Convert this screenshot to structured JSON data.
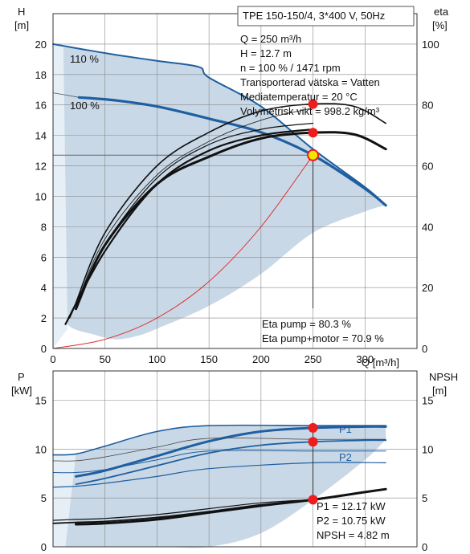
{
  "title": "TPE 150-150/4, 3*400 V, 50Hz",
  "colors": {
    "curve": "#1f5fa0",
    "region": "#c9d8e6",
    "region_light": "#e6eef6",
    "marker": "#ee1c1c",
    "operating_point": "#f2e500",
    "system_curve": "#e02020",
    "grid": "#888888"
  },
  "chart_data": [
    {
      "id": "head",
      "type": "line",
      "axes": {
        "x": {
          "label": "Q [m³/h]",
          "range": [
            0,
            350
          ],
          "ticks": [
            0,
            50,
            100,
            150,
            200,
            250,
            300
          ]
        },
        "y_left": {
          "label_top": "H",
          "label_bottom": "[m]",
          "range": [
            0,
            22
          ],
          "ticks": [
            0,
            2,
            4,
            6,
            8,
            10,
            12,
            14,
            16,
            18,
            20
          ]
        },
        "y_right": {
          "label_top": "eta",
          "label_bottom": "[%]",
          "range": [
            0,
            110
          ],
          "ticks": [
            0,
            20,
            40,
            60,
            80,
            100
          ]
        }
      },
      "grid": true,
      "series": [
        {
          "name": "110 %",
          "axis": "left",
          "x": [
            0,
            25,
            60,
            100,
            140,
            150,
            200,
            250,
            300,
            320
          ],
          "y": [
            20.0,
            19.7,
            19.3,
            18.9,
            18.5,
            17.8,
            15.9,
            13.1,
            10.6,
            9.4
          ]
        },
        {
          "name": "100 %",
          "axis": "left",
          "x": [
            25,
            60,
            100,
            150,
            200,
            250,
            300,
            320
          ],
          "y": [
            16.5,
            16.3,
            15.9,
            15.1,
            14.2,
            12.7,
            10.5,
            9.4
          ]
        },
        {
          "axis": "left",
          "x": [
            0,
            25
          ],
          "y": [
            16.8,
            16.5
          ]
        },
        {
          "axis": "left",
          "x": [
            0,
            250
          ],
          "y": [
            12.7,
            12.7
          ]
        },
        {
          "axis": "left",
          "x": [
            0,
            50,
            100,
            150,
            200,
            250
          ],
          "y": [
            0.0,
            0.6,
            2.0,
            4.4,
            8.0,
            12.7
          ]
        },
        {
          "axis": "right",
          "x": [
            22,
            50,
            100,
            150,
            200,
            250,
            290,
            320
          ],
          "y": [
            15,
            38,
            60,
            71,
            78,
            80.3,
            79.5,
            74
          ]
        },
        {
          "axis": "right",
          "x": [
            22,
            50,
            100,
            150,
            200,
            250,
            290,
            320
          ],
          "y": [
            13,
            34,
            54,
            63,
            69,
            70.9,
            70.3,
            65.5
          ]
        },
        {
          "axis": "right",
          "x": [
            22,
            50,
            100,
            150,
            200,
            250
          ],
          "y": [
            14,
            36,
            57,
            68,
            75,
            79
          ]
        },
        {
          "axis": "right",
          "x": [
            12,
            50,
            100,
            150,
            200,
            250
          ],
          "y": [
            8,
            32,
            54,
            65,
            70,
            72
          ]
        },
        {
          "axis": "right",
          "x": [
            16,
            50,
            100,
            150,
            200,
            250
          ],
          "y": [
            10,
            34,
            56,
            67,
            72,
            74
          ]
        }
      ],
      "region_upper": {
        "x": [
          5,
          25,
          60,
          100,
          140,
          150,
          200,
          250,
          300,
          320
        ],
        "y": [
          19.8,
          19.7,
          19.3,
          18.9,
          18.5,
          17.8,
          15.9,
          13.1,
          10.6,
          9.4
        ]
      },
      "region_lower": {
        "x": [
          5,
          15,
          40,
          60,
          80,
          100,
          150,
          200,
          250,
          300,
          320
        ],
        "y": [
          3.0,
          1.5,
          0.9,
          0.6,
          0.8,
          1.3,
          2.8,
          4.9,
          7.6,
          9.0,
          9.4
        ]
      },
      "operating_point": {
        "x": 250,
        "y": 12.7
      },
      "markers": [
        {
          "x": 250,
          "y_right": 80.3
        },
        {
          "x": 250,
          "y_right": 70.9
        }
      ],
      "info_lines": [
        "Q = 250 m³/h",
        "H = 12.7 m",
        "n = 100 % / 1471 rpm",
        "Transporterad vätska = Vatten",
        "Mediatemperatur = 20 °C",
        "Volymetrisk vikt = 998.2 kg/m³"
      ],
      "eta_lines": [
        "Eta pump = 80.3 %",
        "Eta pump+motor = 70.9 %"
      ]
    },
    {
      "id": "power",
      "type": "line",
      "axes": {
        "x": {
          "range": [
            0,
            350
          ]
        },
        "y_left": {
          "label_top": "P",
          "label_bottom": "[kW]",
          "range": [
            0,
            18
          ],
          "ticks": [
            0,
            5,
            10,
            15
          ]
        },
        "y_right": {
          "label_top": "NPSH",
          "label_bottom": "[m]",
          "range": [
            0,
            18
          ],
          "ticks": [
            0,
            5,
            10,
            15
          ]
        }
      },
      "grid": true,
      "series": [
        {
          "name": "P1",
          "axis": "left",
          "x": [
            22,
            50,
            100,
            150,
            200,
            250,
            300,
            320
          ],
          "y": [
            7.2,
            7.8,
            9.3,
            10.8,
            11.8,
            12.17,
            12.3,
            12.3
          ]
        },
        {
          "name": "P2",
          "axis": "left",
          "x": [
            22,
            50,
            100,
            150,
            200,
            250,
            300,
            320
          ],
          "y": [
            6.4,
            7.0,
            8.3,
            9.6,
            10.4,
            10.75,
            10.9,
            10.9
          ]
        },
        {
          "axis": "left",
          "x": [
            0,
            22,
            50,
            100,
            150,
            250,
            320
          ],
          "y": [
            9.4,
            9.5,
            10.3,
            11.8,
            12.4,
            12.4,
            12.4
          ]
        },
        {
          "axis": "left",
          "x": [
            0,
            22,
            50,
            100,
            150,
            250,
            320
          ],
          "y": [
            8.8,
            8.8,
            9.2,
            10.2,
            11.1,
            11.0,
            11.0
          ]
        },
        {
          "axis": "left",
          "x": [
            0,
            22,
            50,
            100,
            150,
            250,
            320
          ],
          "y": [
            7.6,
            7.6,
            7.9,
            8.9,
            9.8,
            9.8,
            9.8
          ]
        },
        {
          "axis": "left",
          "x": [
            0,
            22,
            50,
            100,
            150,
            250,
            320
          ],
          "y": [
            6.1,
            6.2,
            6.5,
            7.2,
            8.0,
            8.6,
            8.6
          ]
        },
        {
          "axis": "right",
          "x": [
            22,
            50,
            100,
            150,
            200,
            250,
            300,
            320
          ],
          "y": [
            2.3,
            2.4,
            2.8,
            3.5,
            4.2,
            4.82,
            5.6,
            5.9
          ]
        },
        {
          "axis": "right",
          "x": [
            0,
            22,
            50,
            100,
            150,
            200,
            250
          ],
          "y": [
            2.7,
            2.8,
            2.9,
            3.3,
            3.9,
            4.5,
            4.82
          ]
        },
        {
          "axis": "right",
          "x": [
            0,
            22,
            50,
            100,
            150,
            200,
            250
          ],
          "y": [
            2.4,
            2.5,
            2.6,
            3.0,
            3.6,
            4.3,
            4.82
          ]
        }
      ],
      "region_upper": {
        "x": [
          5,
          22,
          50,
          100,
          150,
          250,
          320
        ],
        "y": [
          9.4,
          9.5,
          10.3,
          11.8,
          12.4,
          12.4,
          12.4
        ]
      },
      "region_lower": {
        "x": [
          5,
          10,
          20,
          30,
          100,
          150,
          200,
          250,
          300,
          320
        ],
        "y": [
          0,
          0,
          0,
          0,
          0,
          0,
          1.4,
          4.8,
          8.9,
          11.0
        ]
      },
      "markers": [
        {
          "x": 250,
          "y": 12.17
        },
        {
          "x": 250,
          "y": 10.75
        },
        {
          "x": 250,
          "y": 4.82
        }
      ],
      "info_lines": [
        "P1 = 12.17 kW",
        "P2 = 10.75 kW",
        "NPSH = 4.82 m"
      ]
    }
  ]
}
